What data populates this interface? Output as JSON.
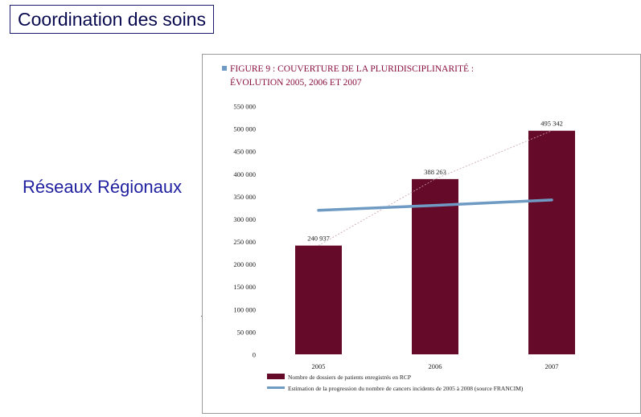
{
  "slide": {
    "title": "Coordination des soins",
    "side_label": "Réseaux Régionaux"
  },
  "chart_data": {
    "type": "bar",
    "title_line1": "FIGURE 9 : COUVERTURE DE LA PLURIDISCIPLINARITÉ :",
    "title_line2": "ÉVOLUTION 2005, 2006 ET 2007",
    "categories": [
      "2005",
      "2006",
      "2007"
    ],
    "series": [
      {
        "name": "Nombre de dossiers de patients enregistrés en RCP",
        "type": "bar",
        "color": "#650a28",
        "values": [
          240937,
          388263,
          495342
        ],
        "labels": [
          "240 937",
          "388 263",
          "495 342"
        ]
      },
      {
        "name": "Estimation de la progression du nombre de cancers incidents de 2005 à 2008 (source FRANCIM)",
        "type": "line",
        "color": "#6f9ac4",
        "values": [
          319000,
          330000,
          342000
        ]
      }
    ],
    "trend_dotted": true,
    "ylim": [
      0,
      550000
    ],
    "yticks": [
      0,
      50000,
      100000,
      150000,
      200000,
      250000,
      300000,
      350000,
      400000,
      450000,
      500000,
      550000
    ],
    "ytick_labels": [
      "0",
      "50 000",
      "100 000",
      "150 000",
      "200 000",
      "250 000",
      "300 000",
      "350 000",
      "400 000",
      "450 000",
      "500 000",
      "550 000"
    ],
    "grid": false,
    "legend": "bottom",
    "colors": {
      "title": "#8a1040",
      "title_marker": "#6f9ac4",
      "bar": "#650a28",
      "line": "#6f9ac4"
    }
  }
}
